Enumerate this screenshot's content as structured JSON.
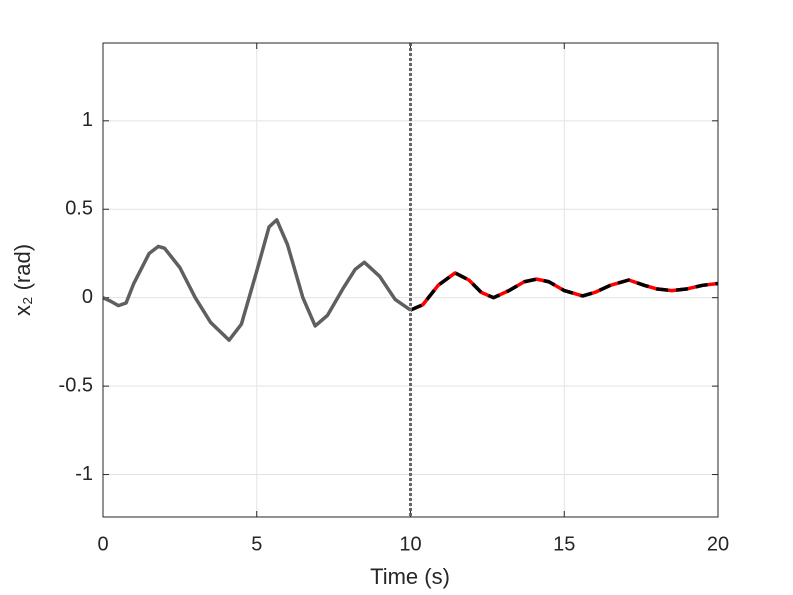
{
  "chart_data": {
    "type": "line",
    "xlabel": "Time (s)",
    "ylabel": "x₂ (rad)",
    "xlim": [
      0,
      20
    ],
    "ylim": [
      -1.24,
      1.44
    ],
    "xticks": [
      0,
      5,
      10,
      15,
      20
    ],
    "yticks": [
      -1,
      -0.5,
      0,
      0.5,
      1
    ],
    "grid": true,
    "vline": {
      "x": 10,
      "color": "#666666",
      "style": "dotted"
    },
    "series": [
      {
        "color": "#5f5f5f",
        "style": "solid",
        "x": [
          0,
          0.25,
          0.5,
          0.75,
          1.0,
          1.5,
          1.8,
          2.0,
          2.5,
          3.0,
          3.5,
          4.1,
          4.5,
          5.0,
          5.4,
          5.65,
          6.0,
          6.5,
          6.9,
          7.3,
          7.8,
          8.2,
          8.5,
          9.0,
          9.5,
          10
        ],
        "values": [
          0,
          -0.02,
          -0.045,
          -0.03,
          0.08,
          0.25,
          0.29,
          0.28,
          0.17,
          0.0,
          -0.14,
          -0.24,
          -0.15,
          0.15,
          0.4,
          0.44,
          0.3,
          0.0,
          -0.16,
          -0.1,
          0.05,
          0.16,
          0.2,
          0.12,
          -0.01,
          -0.07
        ]
      },
      {
        "color": "#ff0000",
        "style": "solid",
        "x": [
          10,
          10.4,
          10.9,
          11.45,
          11.9,
          12.3,
          12.7,
          13.2,
          13.7,
          14.1,
          14.5,
          15.0,
          15.6,
          16.0,
          16.5,
          17.1,
          17.6,
          18.0,
          18.5,
          19.0,
          19.5,
          20
        ],
        "values": [
          -0.07,
          -0.04,
          0.07,
          0.14,
          0.1,
          0.03,
          0.0,
          0.04,
          0.09,
          0.105,
          0.09,
          0.04,
          0.01,
          0.03,
          0.07,
          0.1,
          0.07,
          0.05,
          0.04,
          0.05,
          0.07,
          0.08
        ]
      },
      {
        "color": "#000000",
        "style": "dashed",
        "x": [
          10,
          10.4,
          10.9,
          11.45,
          11.9,
          12.3,
          12.7,
          13.2,
          13.7,
          14.1,
          14.5,
          15.0,
          15.6,
          16.0,
          16.5,
          17.1,
          17.6,
          18.0,
          18.5,
          19.0,
          19.5,
          20
        ],
        "values": [
          -0.07,
          -0.04,
          0.07,
          0.14,
          0.1,
          0.03,
          0.0,
          0.04,
          0.09,
          0.105,
          0.09,
          0.04,
          0.01,
          0.03,
          0.07,
          0.1,
          0.07,
          0.05,
          0.04,
          0.05,
          0.07,
          0.08
        ]
      }
    ]
  }
}
